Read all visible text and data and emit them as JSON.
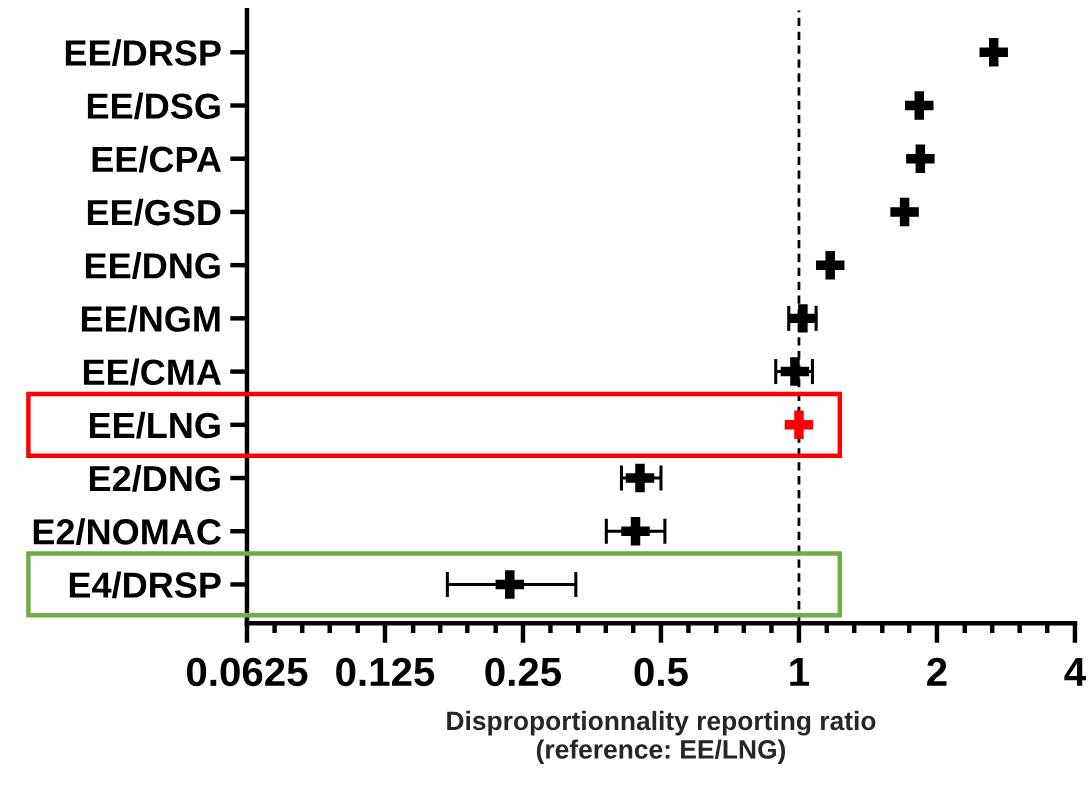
{
  "chart_data": {
    "type": "scatter",
    "orientation": "horizontal",
    "log": "x",
    "marker": "cross",
    "categories": [
      "EE/DRSP",
      "EE/DSG",
      "EE/CPA",
      "EE/GSD",
      "EE/DNG",
      "EE/NGM",
      "EE/CMA",
      "EE/LNG",
      "E2/DNG",
      "E2/NOMAC",
      "E4/DRSP"
    ],
    "values": [
      2.66,
      1.83,
      1.84,
      1.7,
      1.17,
      1.02,
      0.98,
      1,
      0.45,
      0.44,
      0.234
    ],
    "errors": [
      null,
      null,
      null,
      null,
      null,
      [
        0.95,
        1.09
      ],
      [
        0.89,
        1.07
      ],
      null,
      [
        0.41,
        0.5
      ],
      [
        0.38,
        0.51
      ],
      [
        0.171,
        0.326
      ]
    ],
    "colors": [
      "#000000",
      "#000000",
      "#000000",
      "#000000",
      "#000000",
      "#000000",
      "#000000",
      "#ff0000",
      "#000000",
      "#000000",
      "#000000"
    ],
    "xlabel": "Disproportionnality reporting ratio\n(reference: EE/LNG)",
    "xlim": [
      0.0625,
      4
    ],
    "xticks": [
      0.0625,
      {
        "value": 0.0718,
        "label": null
      },
      {
        "value": 0.0825,
        "label": null
      },
      {
        "value": 0.0947,
        "label": null
      },
      {
        "value": 0.109,
        "label": null
      },
      0.125,
      {
        "value": 0.144,
        "label": null
      },
      {
        "value": 0.165,
        "label": null
      },
      {
        "value": 0.189,
        "label": null
      },
      {
        "value": 0.218,
        "label": null
      },
      0.25,
      {
        "value": 0.287,
        "label": null
      },
      {
        "value": 0.33,
        "label": null
      },
      {
        "value": 0.379,
        "label": null
      },
      {
        "value": 0.435,
        "label": null
      },
      0.5,
      {
        "value": 0.574,
        "label": null
      },
      {
        "value": 0.66,
        "label": null
      },
      {
        "value": 0.758,
        "label": null
      },
      {
        "value": 0.871,
        "label": null
      },
      1,
      {
        "value": 1.15,
        "label": null
      },
      {
        "value": 1.32,
        "label": null
      },
      {
        "value": 1.52,
        "label": null
      },
      {
        "value": 1.74,
        "label": null
      },
      2,
      {
        "value": 2.3,
        "label": null
      },
      {
        "value": 2.64,
        "label": null
      },
      {
        "value": 3.03,
        "label": null
      },
      {
        "value": 3.48,
        "label": null
      },
      4
    ],
    "ref_lines": [
      {
        "axis": "x",
        "value": 1,
        "line_style": "dashed",
        "color": "#000000"
      }
    ],
    "grid": false,
    "legend": false
  }
}
